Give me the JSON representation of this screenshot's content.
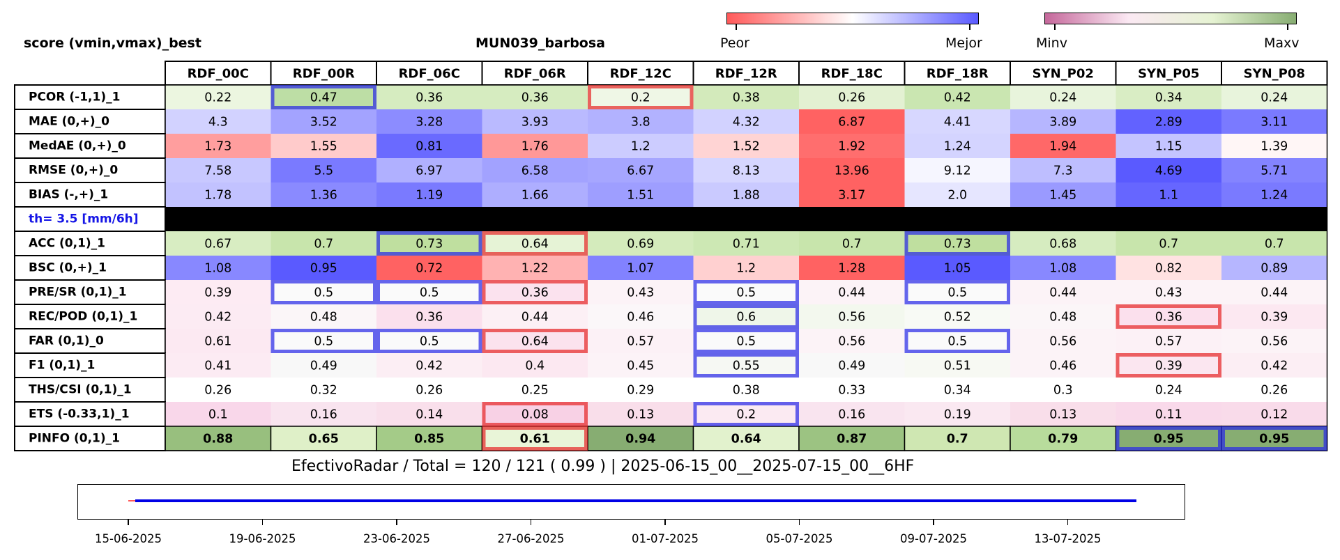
{
  "header": {
    "title_left": "score (vmin,vmax)_best",
    "title_center": "MUN039_barbosa",
    "legend1_left": "Peor",
    "legend1_right": "Mejor",
    "legend2_left": "Minv",
    "legend2_right": "Maxv"
  },
  "colors": {
    "bad": "#ff5a5a",
    "good": "#5a5aff",
    "minv": "#c5689b",
    "maxv": "#87ad72",
    "best_box": "#2a2ae6",
    "worst_box": "#e62a2a",
    "threshold_label": "#1515e6"
  },
  "chart_data": {
    "type": "table",
    "columns": [
      "RDF_00C",
      "RDF_00R",
      "RDF_06C",
      "RDF_06R",
      "RDF_12C",
      "RDF_12R",
      "RDF_18C",
      "RDF_18R",
      "SYN_P02",
      "SYN_P05",
      "SYN_P08"
    ],
    "rows": [
      {
        "label": "PCOR (-1,1)_1",
        "cmap": "green",
        "values": [
          "0.22",
          "0.47",
          "0.36",
          "0.36",
          "0.2",
          "0.38",
          "0.26",
          "0.42",
          "0.24",
          "0.34",
          "0.24"
        ],
        "best": [
          1
        ],
        "worst": [
          4
        ]
      },
      {
        "label": "MAE (0,+)_0",
        "cmap": "rb",
        "values": [
          "4.3",
          "3.52",
          "3.28",
          "3.93",
          "3.8",
          "4.32",
          "6.87",
          "4.41",
          "3.89",
          "2.89",
          "3.11"
        ],
        "best": [],
        "worst": []
      },
      {
        "label": "MedAE (0,+)_0",
        "cmap": "rb",
        "values": [
          "1.73",
          "1.55",
          "0.81",
          "1.76",
          "1.2",
          "1.52",
          "1.92",
          "1.24",
          "1.94",
          "1.15",
          "1.39"
        ],
        "best": [],
        "worst": []
      },
      {
        "label": "RMSE (0,+)_0",
        "cmap": "rb",
        "values": [
          "7.58",
          "5.5",
          "6.97",
          "6.58",
          "6.67",
          "8.13",
          "13.96",
          "9.12",
          "7.3",
          "4.69",
          "5.71"
        ],
        "best": [],
        "worst": []
      },
      {
        "label": "BIAS (-,+)_1",
        "cmap": "rb",
        "values": [
          "1.78",
          "1.36",
          "1.19",
          "1.66",
          "1.51",
          "1.88",
          "3.17",
          "2.0",
          "1.45",
          "1.1",
          "1.24"
        ],
        "best": [],
        "worst": []
      },
      {
        "label": "th= 3.5 [mm/6h]",
        "separator": true
      },
      {
        "label": "ACC (0,1)_1",
        "cmap": "green",
        "values": [
          "0.67",
          "0.7",
          "0.73",
          "0.64",
          "0.69",
          "0.71",
          "0.7",
          "0.73",
          "0.68",
          "0.7",
          "0.7"
        ],
        "best": [
          2,
          7
        ],
        "worst": [
          3
        ]
      },
      {
        "label": "BSC (0,+)_1",
        "cmap": "rb",
        "values": [
          "1.08",
          "0.95",
          "0.72",
          "1.22",
          "1.07",
          "1.2",
          "1.28",
          "1.05",
          "1.08",
          "0.82",
          "0.89"
        ],
        "best": [],
        "worst": []
      },
      {
        "label": "PRE/SR (0,1)_1",
        "cmap": "pink",
        "values": [
          "0.39",
          "0.5",
          "0.5",
          "0.36",
          "0.43",
          "0.5",
          "0.44",
          "0.5",
          "0.44",
          "0.43",
          "0.44"
        ],
        "best": [
          1,
          2,
          5,
          7
        ],
        "worst": [
          3
        ]
      },
      {
        "label": "REC/POD (0,1)_1",
        "cmap": "pink",
        "values": [
          "0.42",
          "0.48",
          "0.36",
          "0.44",
          "0.46",
          "0.6",
          "0.56",
          "0.52",
          "0.48",
          "0.36",
          "0.39"
        ],
        "best": [
          5
        ],
        "worst": [
          9
        ]
      },
      {
        "label": "FAR (0,1)_0",
        "cmap": "pink",
        "values": [
          "0.61",
          "0.5",
          "0.5",
          "0.64",
          "0.57",
          "0.5",
          "0.56",
          "0.5",
          "0.56",
          "0.57",
          "0.56"
        ],
        "best": [
          1,
          2,
          5,
          7
        ],
        "worst": [
          3
        ]
      },
      {
        "label": "F1 (0,1)_1",
        "cmap": "pink",
        "values": [
          "0.41",
          "0.49",
          "0.42",
          "0.4",
          "0.45",
          "0.55",
          "0.49",
          "0.51",
          "0.46",
          "0.39",
          "0.42"
        ],
        "best": [
          5
        ],
        "worst": [
          9
        ]
      },
      {
        "label": "THS/CSI (0,1)_1",
        "cmap": "pink",
        "values": [
          "0.26",
          "0.32",
          "0.26",
          "0.25",
          "0.29",
          "0.38",
          "0.33",
          "0.34",
          "0.3",
          "0.24",
          "0.26"
        ],
        "best": [],
        "worst": []
      },
      {
        "label": "ETS (-0.33,1)_1",
        "cmap": "pink",
        "values": [
          "0.1",
          "0.16",
          "0.14",
          "0.08",
          "0.13",
          "0.2",
          "0.16",
          "0.19",
          "0.13",
          "0.11",
          "0.12"
        ],
        "best": [
          5
        ],
        "worst": [
          3
        ]
      },
      {
        "label": "PINFO (0,1)_1",
        "cmap": "green",
        "bold": true,
        "values": [
          "0.88",
          "0.65",
          "0.85",
          "0.61",
          "0.94",
          "0.64",
          "0.87",
          "0.7",
          "0.79",
          "0.95",
          "0.95"
        ],
        "best": [
          9,
          10
        ],
        "worst": [
          3
        ]
      }
    ],
    "cell_colors": [
      [
        "#ecf6e0",
        "#bddea5",
        "#d6ecc0",
        "#d6ecc0",
        "#eff7e6",
        "#d3eabb",
        "#e3f1d2",
        "#cae6b1",
        "#e8f4dc",
        "#d9edc4",
        "#e8f4dc"
      ],
      [
        "#d2d2ff",
        "#a3a3ff",
        "#8c8cff",
        "#babaff",
        "#b2b2ff",
        "#d2d2ff",
        "#ff6262",
        "#d7d7ff",
        "#b6b6ff",
        "#6262ff",
        "#7a7aff"
      ],
      [
        "#ff9e9e",
        "#ffcbcb",
        "#6a6aff",
        "#ff9898",
        "#ccccff",
        "#ffd4d4",
        "#ff6e6e",
        "#d4d4ff",
        "#ff6868",
        "#c4c4ff",
        "#fff6f6"
      ],
      [
        "#c8c8ff",
        "#7a7aff",
        "#b0b0ff",
        "#a2a2ff",
        "#a6a6ff",
        "#d6d6ff",
        "#ff6262",
        "#f6f6ff",
        "#bebeff",
        "#5a5aff",
        "#8484ff"
      ],
      [
        "#c2c2ff",
        "#8a8aff",
        "#7a7aff",
        "#aeaeff",
        "#9e9eff",
        "#cacaff",
        "#ff6262",
        "#e6e6ff",
        "#9a9aff",
        "#6666ff",
        "#7a7aff"
      ],
      null,
      [
        "#d8edc2",
        "#c8e5ac",
        "#bfdf9f",
        "#e6f3d6",
        "#d4ebbc",
        "#cde8b4",
        "#c8e5ac",
        "#bfdf9f",
        "#d6ecc0",
        "#c8e5ac",
        "#c8e5ac"
      ],
      [
        "#8888ff",
        "#5a5aff",
        "#ff6262",
        "#ffb2b2",
        "#8282ff",
        "#ffd0d0",
        "#ff6262",
        "#5a5aff",
        "#8888ff",
        "#ffe2e2",
        "#b6b6ff"
      ],
      [
        "#fdebf3",
        "#fafafa",
        "#fafafa",
        "#fbe2ee",
        "#fcf3f7",
        "#fafafa",
        "#fcf3f7",
        "#fafafa",
        "#fcf3f7",
        "#fcf3f7",
        "#fcf3f7"
      ],
      [
        "#fcebf3",
        "#fbf6f8",
        "#fbe0ed",
        "#fcf0f5",
        "#fbf7f9",
        "#eff6e9",
        "#f3f8ee",
        "#f8faf5",
        "#fbf6f8",
        "#fbe0ed",
        "#fce8f1"
      ],
      [
        "#fce9f2",
        "#fafafa",
        "#fafafa",
        "#fbe2ee",
        "#fcf1f6",
        "#fafafa",
        "#fcf3f7",
        "#fafafa",
        "#fcf3f7",
        "#fcf1f6",
        "#fcf3f7"
      ],
      [
        "#fcebf3",
        "#f8f8f8",
        "#fceef4",
        "#fce8f1",
        "#fcf3f7",
        "#f6f8f3",
        "#f8f8f8",
        "#f7f9f3",
        "#fcf3f7",
        "#fbe6f0",
        "#fceef4"
      ],
      [
        "#ffffff",
        "#ffffff",
        "#ffffff",
        "#ffffff",
        "#ffffff",
        "#ffffff",
        "#ffffff",
        "#ffffff",
        "#ffffff",
        "#ffffff",
        "#ffffff"
      ],
      [
        "#f9d7ea",
        "#f9e4ef",
        "#f9dfeb",
        "#f8d1e5",
        "#f9deea",
        "#fbeaf2",
        "#f9e4ef",
        "#fae8f1",
        "#f9deea",
        "#f9d9ea",
        "#f9dbea"
      ],
      [
        "#98bf7e",
        "#dff0c8",
        "#a4cb88",
        "#e9f5d8",
        "#87ad72",
        "#e2f2cd",
        "#9cc382",
        "#cfe7b2",
        "#b8dc9c",
        "#87ad72",
        "#87ad72"
      ]
    ]
  },
  "footer": {
    "summary": "EfectivoRadar / Total  =  120 / 121 ( 0.99 ) | 2025-06-15_00__2025-07-15_00__6HF",
    "ticks": [
      "15-06-2025",
      "19-06-2025",
      "23-06-2025",
      "27-06-2025",
      "01-07-2025",
      "05-07-2025",
      "09-07-2025",
      "13-07-2025"
    ]
  }
}
